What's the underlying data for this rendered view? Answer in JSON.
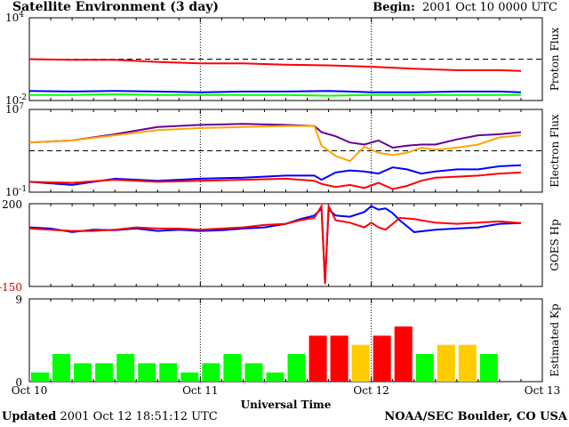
{
  "header": {
    "title": "Satellite Environment (3 day)",
    "begin_label": "Begin:",
    "begin_value": "2001 Oct 10 0000 UTC"
  },
  "footer": {
    "updated_label": "Updated",
    "updated_value": "2001 Oct 12 18:51:12 UTC",
    "credit": "NOAA/SEC Boulder, CO USA"
  },
  "colors": {
    "red": "#ff0000",
    "blue": "#0000ff",
    "green": "#00ff00",
    "purple": "#660099",
    "orange": "#ffa500",
    "kp_green": "#00ff00",
    "kp_yellow": "#ffcc00",
    "kp_red": "#ff0000"
  },
  "chart_data": [
    {
      "type": "line",
      "name": "proton-flux",
      "ylabel": "Proton Flux",
      "yscale": "log",
      "yticks": [
        {
          "base": "10",
          "exp": "4",
          "value": 4
        },
        {
          "base": "10",
          "exp": "-2",
          "value": -2
        }
      ],
      "ylim_log": [
        -2,
        4
      ],
      "threshold_log": 1,
      "x": [
        0,
        6,
        12,
        18,
        24,
        30,
        36,
        42,
        48,
        54,
        60,
        66,
        69
      ],
      "series": [
        {
          "color": "red",
          "values_log": [
            1.0,
            0.95,
            0.95,
            0.8,
            0.7,
            0.7,
            0.6,
            0.55,
            0.45,
            0.3,
            0.2,
            0.2,
            0.15
          ]
        },
        {
          "color": "blue",
          "values_log": [
            -1.3,
            -1.35,
            -1.3,
            -1.35,
            -1.4,
            -1.35,
            -1.35,
            -1.3,
            -1.4,
            -1.4,
            -1.35,
            -1.35,
            -1.4
          ]
        },
        {
          "color": "green",
          "values_log": [
            -1.6,
            -1.6,
            -1.55,
            -1.6,
            -1.6,
            -1.6,
            -1.6,
            -1.65,
            -1.6,
            -1.6,
            -1.6,
            -1.6,
            -1.6
          ]
        }
      ]
    },
    {
      "type": "line",
      "name": "electron-flux",
      "ylabel": "Electron Flux",
      "yscale": "log",
      "yticks": [
        {
          "base": "10",
          "exp": "7",
          "value": 7
        },
        {
          "base": "10",
          "exp": "-1",
          "value": -1
        }
      ],
      "ylim_log": [
        -1,
        7
      ],
      "threshold_log": 3,
      "x": [
        0,
        6,
        12,
        18,
        24,
        30,
        36,
        40,
        41,
        43,
        45,
        47,
        49,
        51,
        53,
        55,
        57,
        60,
        63,
        66,
        69
      ],
      "series": [
        {
          "color": "purple",
          "values_log": [
            3.8,
            4.0,
            4.6,
            5.3,
            5.5,
            5.6,
            5.5,
            5.4,
            4.8,
            4.4,
            3.8,
            3.6,
            4.0,
            3.3,
            3.5,
            3.6,
            3.6,
            4.1,
            4.5,
            4.6,
            4.8
          ]
        },
        {
          "color": "orange",
          "values_log": [
            3.8,
            4.0,
            4.5,
            5.0,
            5.2,
            5.3,
            5.4,
            5.4,
            3.5,
            2.5,
            2.0,
            3.4,
            2.8,
            2.6,
            2.8,
            3.3,
            3.1,
            3.3,
            3.6,
            4.3,
            4.5
          ]
        },
        {
          "color": "blue",
          "values_log": [
            0.0,
            -0.3,
            0.3,
            0.1,
            0.3,
            0.4,
            0.6,
            0.6,
            0.2,
            0.9,
            1.1,
            1.0,
            0.8,
            1.4,
            1.2,
            0.8,
            1.0,
            1.2,
            1.2,
            1.5,
            1.6
          ]
        },
        {
          "color": "red",
          "values_log": [
            0.0,
            -0.1,
            0.2,
            0.0,
            0.1,
            0.2,
            0.3,
            0.1,
            -0.2,
            -0.5,
            -0.3,
            -0.6,
            -0.1,
            -0.7,
            -0.4,
            0.1,
            0.4,
            0.5,
            0.6,
            0.8,
            0.9
          ]
        }
      ]
    },
    {
      "type": "line",
      "name": "goes-hp",
      "ylabel": "GOES Hp",
      "ylim": [
        -150,
        200
      ],
      "yticks": [
        {
          "label": "200",
          "value": 200,
          "color": "#000000"
        },
        {
          "label": "-150",
          "value": -150,
          "color": "#cc0000"
        }
      ],
      "x": [
        0,
        3,
        6,
        9,
        12,
        15,
        18,
        21,
        24,
        27,
        30,
        33,
        36,
        38,
        40,
        41,
        41.5,
        42,
        43,
        45,
        47,
        48,
        49,
        50,
        51,
        52,
        54,
        57,
        60,
        63,
        66,
        69
      ],
      "series": [
        {
          "color": "blue",
          "values": [
            100,
            95,
            80,
            90,
            88,
            95,
            85,
            90,
            85,
            88,
            95,
            100,
            115,
            135,
            150,
            180,
            -130,
            175,
            150,
            145,
            165,
            190,
            175,
            180,
            160,
            130,
            80,
            90,
            95,
            100,
            115,
            118
          ]
        },
        {
          "color": "red",
          "values": [
            95,
            90,
            85,
            85,
            90,
            100,
            95,
            95,
            90,
            95,
            100,
            110,
            115,
            130,
            140,
            190,
            -140,
            190,
            130,
            120,
            100,
            120,
            100,
            90,
            115,
            140,
            135,
            120,
            115,
            120,
            125,
            118
          ]
        }
      ]
    },
    {
      "type": "bar",
      "name": "estimated-kp",
      "ylabel": "Estimated Kp",
      "ylim": [
        0,
        9
      ],
      "yticks": [
        {
          "label": "9",
          "value": 9
        },
        {
          "label": "0",
          "value": 0
        }
      ],
      "bar_hours": 3,
      "values": [
        1,
        3,
        2,
        2,
        3,
        2,
        2,
        1,
        2,
        3,
        2,
        1,
        3,
        5,
        5,
        4,
        5,
        6,
        3,
        4,
        4,
        3
      ],
      "bar_colors": [
        "green",
        "green",
        "green",
        "green",
        "green",
        "green",
        "green",
        "green",
        "green",
        "green",
        "green",
        "green",
        "green",
        "red",
        "red",
        "yellow",
        "red",
        "red",
        "green",
        "yellow",
        "yellow",
        "green"
      ]
    }
  ],
  "xaxis": {
    "ticks": [
      "Oct 10",
      "Oct 11",
      "Oct 12",
      "Oct 13"
    ],
    "label": "Universal Time",
    "xlim_hours": [
      0,
      72
    ]
  }
}
